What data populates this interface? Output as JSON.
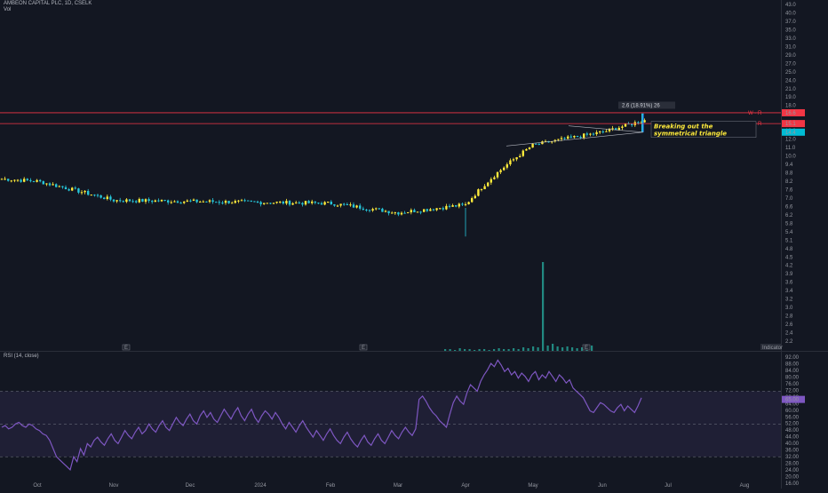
{
  "header": {
    "title": "AMBEON CAPITAL PLC, 1D, CSELK",
    "vol_label": "Vol"
  },
  "rsi_panel": {
    "label": "RSI (14, close)"
  },
  "measure_label": "2.6 (18.91%) 26",
  "annotation": [
    "Breaking out the",
    "symmetrical triangle"
  ],
  "levels": [
    {
      "label": "W - R",
      "price": 16.6,
      "tag": "16.6"
    },
    {
      "label": "W - R",
      "price": 15.1,
      "tag": "15.1"
    }
  ],
  "last_price_tag": "14.4",
  "rsi_tags": [
    "65.00",
    "62.00"
  ],
  "event_markers": [
    "E",
    "E",
    "E"
  ],
  "right_badge": "Indicator",
  "colors": {
    "up": "#ffeb3b",
    "down": "#26c6da",
    "volume": "#26a69a",
    "level": "#f23645",
    "rsi_line": "#7e57c2",
    "rsi_band": "#7e57c2",
    "background": "#131722"
  },
  "chart_data": [
    {
      "type": "candlestick",
      "title": "AMBEON CAPITAL PLC, 1D, CSELK",
      "x_tick_labels": [
        "Oct",
        "Nov",
        "Dec",
        "2024",
        "Feb",
        "Mar",
        "Apr",
        "May",
        "Jun",
        "Jul",
        "Aug"
      ],
      "y_tick_labels": [
        "43.0",
        "40.0",
        "37.0",
        "35.0",
        "33.0",
        "31.0",
        "29.0",
        "27.0",
        "25.0",
        "24.0",
        "21.0",
        "19.0",
        "18.0",
        "16.0",
        "14.0",
        "13.0",
        "12.0",
        "11.0",
        "10.0",
        "9.4",
        "8.8",
        "8.2",
        "7.6",
        "7.0",
        "6.6",
        "6.2",
        "5.8",
        "5.4",
        "5.1",
        "4.8",
        "4.5",
        "4.2",
        "3.9",
        "3.6",
        "3.4",
        "3.2",
        "3.0",
        "2.8",
        "2.6",
        "2.4",
        "2.2"
      ],
      "scale": "log",
      "ylim": [
        2.1,
        44
      ],
      "segments": [
        {
          "from_month": "Sep",
          "to_month": "Oct",
          "price_start": 9.3,
          "price_end": 9.1
        },
        {
          "from_month": "Oct",
          "to_month": "Nov",
          "price_start": 9.1,
          "price_end": 7.7
        },
        {
          "from_month": "Nov",
          "to_month": "Feb",
          "price_start": 7.7,
          "price_end": 7.5
        },
        {
          "from_month": "Feb",
          "to_month": "Mar",
          "price_start": 7.5,
          "price_end": 6.9
        },
        {
          "from_month": "Mar",
          "to_month": "Apr",
          "price_start": 6.9,
          "price_end": 7.4
        },
        {
          "from_month": "Apr",
          "to_month": "May",
          "price_start": 7.4,
          "price_end": 12.5
        },
        {
          "from_month": "May",
          "to_month": "Jun",
          "price_start": 12.5,
          "price_end": 14.0
        },
        {
          "from_month": "Jun",
          "to_month": "Jul",
          "price_start": 14.0,
          "price_end": 16.4
        }
      ],
      "volume_spike_month": "Apr"
    },
    {
      "type": "line",
      "title": "RSI (14, close)",
      "y_tick_labels": [
        "92.00",
        "88.00",
        "84.00",
        "80.00",
        "76.00",
        "72.00",
        "68.00",
        "64.00",
        "60.00",
        "56.00",
        "52.00",
        "48.00",
        "44.00",
        "40.00",
        "36.00",
        "32.00",
        "28.00",
        "24.00",
        "20.00",
        "16.00"
      ],
      "ylim": [
        16,
        93
      ],
      "band": [
        30,
        70
      ],
      "midline": 50,
      "series": [
        {
          "name": "",
          "values": [
            48,
            49,
            47,
            48,
            50,
            51,
            49,
            48,
            50,
            49,
            47,
            46,
            44,
            43,
            40,
            35,
            30,
            28,
            26,
            24,
            22,
            30,
            27,
            35,
            31,
            38,
            36,
            40,
            42,
            39,
            37,
            41,
            44,
            40,
            38,
            42,
            46,
            43,
            41,
            45,
            48,
            44,
            46,
            50,
            47,
            45,
            49,
            52,
            48,
            46,
            50,
            54,
            51,
            49,
            53,
            56,
            52,
            50,
            55,
            58,
            54,
            57,
            53,
            51,
            55,
            59,
            56,
            53,
            57,
            60,
            55,
            52,
            56,
            59,
            54,
            51,
            55,
            58,
            56,
            53,
            57,
            54,
            50,
            47,
            51,
            48,
            45,
            49,
            52,
            48,
            45,
            42,
            46,
            43,
            40,
            44,
            47,
            43,
            40,
            38,
            42,
            45,
            41,
            38,
            36,
            40,
            43,
            39,
            37,
            41,
            44,
            40,
            38,
            42,
            46,
            43,
            41,
            45,
            48,
            45,
            43,
            47,
            65,
            67,
            64,
            60,
            57,
            55,
            52,
            50,
            48,
            56,
            63,
            67,
            64,
            62,
            69,
            74,
            72,
            70,
            76,
            80,
            83,
            87,
            85,
            89,
            86,
            82,
            84,
            80,
            82,
            78,
            81,
            79,
            76,
            80,
            82,
            77,
            80,
            78,
            82,
            79,
            76,
            80,
            78,
            75,
            77,
            72,
            70,
            68,
            66,
            62,
            58,
            57,
            60,
            63,
            62,
            60,
            58,
            57,
            60,
            62,
            58,
            61,
            59,
            57,
            61,
            66
          ]
        }
      ]
    },
    {
      "type": "bar",
      "title": "Vol",
      "note": "volume histogram; single large spike at Apr",
      "values_relative": [
        0.02,
        0.02,
        0.01,
        0.03,
        0.02,
        0.02,
        0.01,
        0.02,
        0.02,
        0.01,
        0.02,
        0.03,
        0.02,
        0.02,
        0.03,
        0.02,
        0.04,
        0.03,
        0.05,
        0.04,
        1.0,
        0.06,
        0.08,
        0.05,
        0.04,
        0.05,
        0.04,
        0.03,
        0.04,
        0.05,
        0.06
      ]
    }
  ]
}
